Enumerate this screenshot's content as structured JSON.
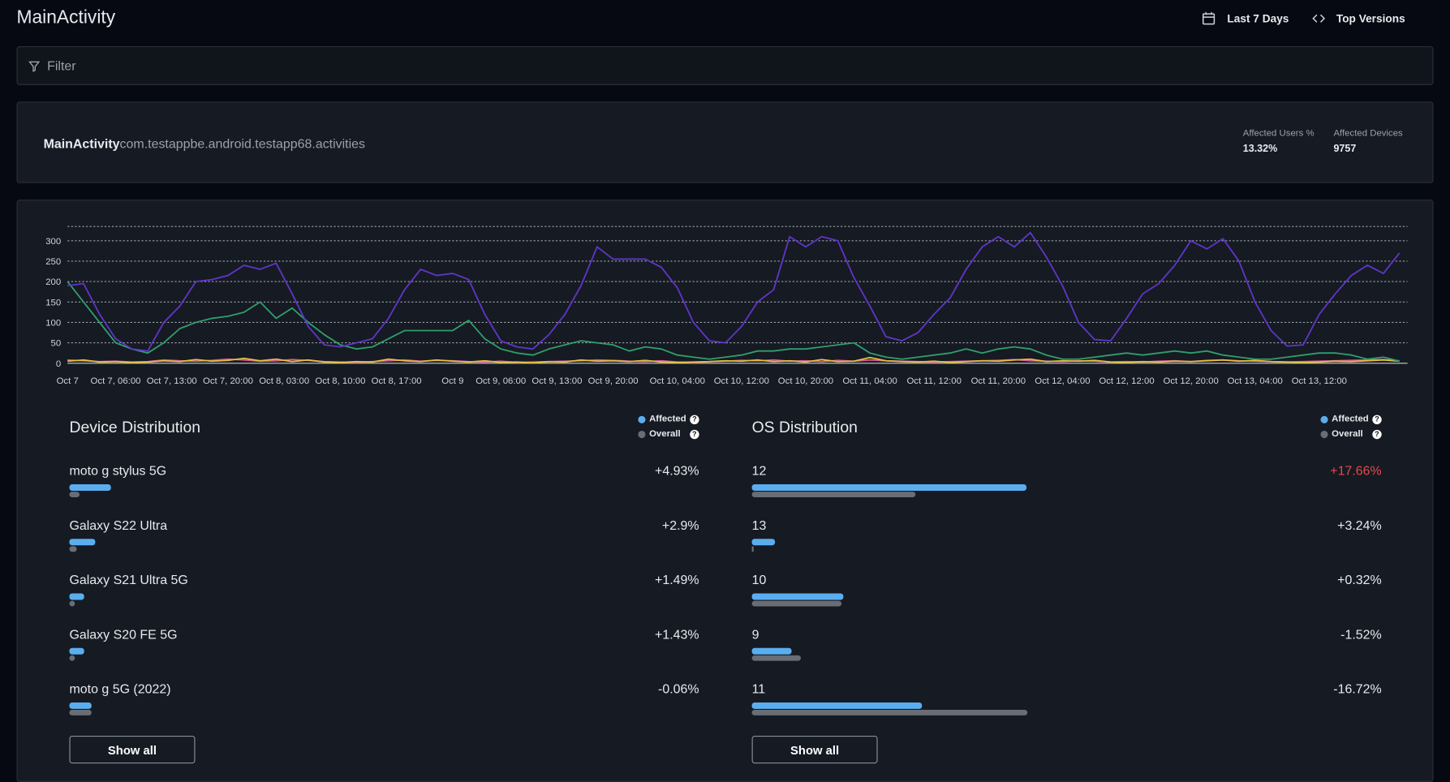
{
  "header": {
    "title": "MainActivity",
    "date_range": "Last 7 Days",
    "versions": "Top Versions"
  },
  "filter": {
    "placeholder": "Filter"
  },
  "summary": {
    "name": "MainActivity",
    "package": "com.testappbe.android.testapp68.activities",
    "stats": [
      {
        "label": "Affected Users %",
        "value": "13.32%"
      },
      {
        "label": "Affected Devices",
        "value": 9757
      }
    ]
  },
  "chart_data": {
    "type": "line",
    "grid": true,
    "grid_style": "dotted",
    "x": [
      0,
      2,
      4,
      6,
      8,
      10,
      12,
      14,
      16,
      18,
      20,
      22,
      24,
      26,
      28,
      30,
      32,
      34,
      36,
      38,
      40,
      42,
      44,
      46,
      48,
      50,
      52,
      54,
      56,
      58,
      60,
      62,
      64,
      66,
      68,
      70,
      72,
      74,
      76,
      78,
      80,
      82,
      84,
      86,
      88,
      90,
      92,
      94,
      96,
      98,
      100,
      102,
      104,
      106,
      108,
      110,
      112,
      114,
      116,
      118,
      120,
      122,
      124,
      126,
      128,
      130,
      132,
      134,
      136,
      138,
      140,
      142,
      144,
      146,
      148,
      150,
      152,
      154,
      156,
      158,
      160,
      162,
      164,
      166
    ],
    "xlim": [
      0,
      167
    ],
    "xticks": [
      {
        "value": 0,
        "label": "Oct 7"
      },
      {
        "value": 6,
        "label": "Oct 7, 06:00"
      },
      {
        "value": 13,
        "label": "Oct 7, 13:00"
      },
      {
        "value": 20,
        "label": "Oct 7, 20:00"
      },
      {
        "value": 27,
        "label": "Oct 8, 03:00"
      },
      {
        "value": 34,
        "label": "Oct 8, 10:00"
      },
      {
        "value": 41,
        "label": "Oct 8, 17:00"
      },
      {
        "value": 48,
        "label": "Oct 9"
      },
      {
        "value": 54,
        "label": "Oct 9, 06:00"
      },
      {
        "value": 61,
        "label": "Oct 9, 13:00"
      },
      {
        "value": 68,
        "label": "Oct 9, 20:00"
      },
      {
        "value": 76,
        "label": "Oct 10, 04:00"
      },
      {
        "value": 84,
        "label": "Oct 10, 12:00"
      },
      {
        "value": 92,
        "label": "Oct 10, 20:00"
      },
      {
        "value": 100,
        "label": "Oct 11, 04:00"
      },
      {
        "value": 108,
        "label": "Oct 11, 12:00"
      },
      {
        "value": 116,
        "label": "Oct 11, 20:00"
      },
      {
        "value": 124,
        "label": "Oct 12, 04:00"
      },
      {
        "value": 132,
        "label": "Oct 12, 12:00"
      },
      {
        "value": 140,
        "label": "Oct 12, 20:00"
      },
      {
        "value": 148,
        "label": "Oct 13, 04:00"
      },
      {
        "value": 156,
        "label": "Oct 13, 12:00"
      }
    ],
    "ylim": [
      0,
      335
    ],
    "yticks": [
      0,
      50,
      100,
      150,
      200,
      250,
      300
    ],
    "series": [
      {
        "color": "#5f35c9",
        "values": [
          190,
          195,
          120,
          60,
          35,
          30,
          100,
          140,
          200,
          205,
          215,
          240,
          230,
          245,
          170,
          90,
          45,
          40,
          50,
          60,
          110,
          180,
          230,
          215,
          220,
          205,
          120,
          55,
          40,
          35,
          70,
          120,
          190,
          285,
          255,
          255,
          255,
          235,
          185,
          100,
          55,
          50,
          90,
          150,
          180,
          310,
          285,
          310,
          300,
          210,
          140,
          65,
          55,
          75,
          120,
          160,
          230,
          285,
          310,
          285,
          320,
          260,
          190,
          100,
          58,
          55,
          110,
          170,
          195,
          240,
          300,
          280,
          305,
          250,
          150,
          80,
          42,
          45,
          120,
          170,
          215,
          240,
          220,
          270
        ]
      },
      {
        "color": "#2f9e6c",
        "values": [
          200,
          150,
          100,
          50,
          35,
          25,
          50,
          85,
          100,
          110,
          115,
          125,
          150,
          110,
          135,
          100,
          70,
          45,
          35,
          40,
          60,
          80,
          80,
          80,
          80,
          105,
          60,
          35,
          25,
          20,
          35,
          45,
          55,
          50,
          45,
          30,
          40,
          35,
          20,
          15,
          10,
          15,
          20,
          30,
          30,
          35,
          35,
          40,
          45,
          50,
          25,
          15,
          10,
          15,
          20,
          25,
          35,
          25,
          35,
          40,
          35,
          20,
          10,
          10,
          15,
          20,
          25,
          20,
          25,
          30,
          25,
          30,
          20,
          15,
          10,
          10,
          15,
          20,
          25,
          25,
          20,
          10,
          15,
          5
        ]
      },
      {
        "color": "#e3c13c",
        "values": [
          5,
          8,
          3,
          4,
          2,
          3,
          6,
          4,
          9,
          5,
          7,
          12,
          6,
          10,
          4,
          8,
          3,
          2,
          4,
          3,
          10,
          6,
          4,
          8,
          5,
          3,
          6,
          2,
          3,
          1,
          4,
          3,
          8,
          5,
          6,
          4,
          7,
          3,
          2,
          3,
          4,
          6,
          5,
          8,
          4,
          6,
          3,
          9,
          4,
          5,
          14,
          6,
          4,
          3,
          5,
          2,
          4,
          6,
          5,
          8,
          10,
          4,
          6,
          5,
          7,
          3,
          2,
          4,
          3,
          5,
          4,
          6,
          8,
          5,
          7,
          4,
          3,
          2,
          3,
          5,
          4,
          6,
          8,
          5
        ]
      },
      {
        "color": "#e0579c",
        "values": [
          8,
          6,
          4,
          5,
          3,
          4,
          8,
          6,
          5,
          7,
          10,
          8,
          5,
          6,
          9,
          7,
          4,
          3,
          2,
          4,
          6,
          8,
          5,
          7,
          6,
          4,
          3,
          5,
          2,
          3,
          4,
          5,
          6,
          8,
          7,
          5,
          4,
          6,
          3,
          2,
          4,
          5,
          7,
          6,
          8,
          5,
          6,
          4,
          7,
          5,
          8,
          6,
          5,
          4,
          3,
          4,
          5,
          6,
          7,
          9,
          6,
          5,
          4,
          6,
          5,
          3,
          4,
          3,
          5,
          6,
          4,
          7,
          8,
          6,
          5,
          4,
          3,
          4,
          5,
          6,
          7,
          8,
          9,
          6
        ]
      }
    ]
  },
  "distributions": [
    {
      "title": "Device Distribution",
      "legend": {
        "affected": "Affected",
        "overall": "Overall"
      },
      "button": "Show all",
      "rows": [
        {
          "name": "moto g stylus 5G",
          "delta": "+4.93%",
          "affected": 6.6,
          "overall": 1.67
        },
        {
          "name": "Galaxy S22 Ultra",
          "delta": "+2.9%",
          "affected": 4.1,
          "overall": 1.2
        },
        {
          "name": "Galaxy S21 Ultra 5G",
          "delta": "+1.49%",
          "affected": 2.4,
          "overall": 0.91
        },
        {
          "name": "Galaxy S20 FE 5G",
          "delta": "+1.43%",
          "affected": 2.3,
          "overall": 0.87
        },
        {
          "name": "moto g 5G (2022)",
          "delta": "-0.06%",
          "affected": 3.5,
          "overall": 3.56
        }
      ]
    },
    {
      "title": "OS Distribution",
      "legend": {
        "affected": "Affected",
        "overall": "Overall"
      },
      "button": "Show all",
      "rows": [
        {
          "name": "12",
          "delta": "+17.66%",
          "alert": true,
          "affected": 43.6,
          "overall": 25.94
        },
        {
          "name": "13",
          "delta": "+3.24%",
          "affected": 3.6,
          "overall": 0.36
        },
        {
          "name": "10",
          "delta": "+0.32%",
          "affected": 14.5,
          "overall": 14.18
        },
        {
          "name": "9",
          "delta": "-1.52%",
          "affected": 6.3,
          "overall": 7.82
        },
        {
          "name": "11",
          "delta": "-16.72%",
          "affected": 27.0,
          "overall": 43.72
        }
      ]
    }
  ]
}
